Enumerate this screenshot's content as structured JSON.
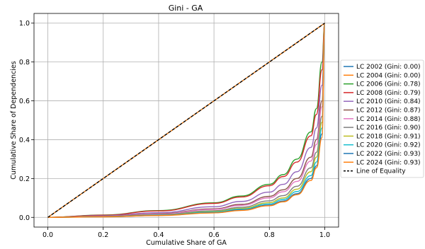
{
  "chart_data": {
    "type": "line",
    "title": "Gini - GA",
    "xlabel": "Cumulative Share of GA",
    "ylabel": "Cumulative Share of Dependencies",
    "xlim": [
      -0.05,
      1.05
    ],
    "ylim": [
      -0.05,
      1.05
    ],
    "xticks": [
      0.0,
      0.2,
      0.4,
      0.6,
      0.8,
      1.0
    ],
    "yticks": [
      0.0,
      0.2,
      0.4,
      0.6,
      0.8,
      1.0
    ],
    "xtick_labels": [
      "0.0",
      "0.2",
      "0.4",
      "0.6",
      "0.8",
      "1.0"
    ],
    "ytick_labels": [
      "0.0",
      "0.2",
      "0.4",
      "0.6",
      "0.8",
      "1.0"
    ],
    "grid": true,
    "legend_position": "outside right",
    "series": [
      {
        "name": "LC 2002 (Gini: 0.00)",
        "color": "#1f77b4",
        "style": "solid",
        "x": [
          0.0,
          1.0
        ],
        "y": [
          0.0,
          1.0
        ]
      },
      {
        "name": "LC 2004 (Gini: 0.00)",
        "color": "#ff7f0e",
        "style": "solid",
        "x": [
          0.0,
          1.0
        ],
        "y": [
          0.0,
          1.0
        ]
      },
      {
        "name": "LC 2006 (Gini: 0.78)",
        "color": "#2ca02c",
        "style": "solid",
        "x": [
          0.0,
          0.2,
          0.4,
          0.6,
          0.7,
          0.8,
          0.85,
          0.9,
          0.95,
          0.97,
          0.99,
          1.0
        ],
        "y": [
          0.0,
          0.012,
          0.035,
          0.075,
          0.11,
          0.17,
          0.22,
          0.3,
          0.44,
          0.56,
          0.8,
          1.0
        ]
      },
      {
        "name": "LC 2008 (Gini: 0.79)",
        "color": "#d62728",
        "style": "solid",
        "x": [
          0.0,
          0.2,
          0.4,
          0.6,
          0.7,
          0.8,
          0.85,
          0.9,
          0.95,
          0.97,
          0.99,
          1.0
        ],
        "y": [
          0.0,
          0.011,
          0.033,
          0.072,
          0.105,
          0.163,
          0.21,
          0.285,
          0.42,
          0.53,
          0.76,
          1.0
        ]
      },
      {
        "name": "LC 2010 (Gini: 0.84)",
        "color": "#9467bd",
        "style": "solid",
        "x": [
          0.0,
          0.2,
          0.4,
          0.6,
          0.7,
          0.8,
          0.85,
          0.9,
          0.95,
          0.97,
          0.99,
          1.0
        ],
        "y": [
          0.0,
          0.008,
          0.024,
          0.055,
          0.082,
          0.13,
          0.17,
          0.235,
          0.36,
          0.46,
          0.68,
          1.0
        ]
      },
      {
        "name": "LC 2012 (Gini: 0.87)",
        "color": "#8c564b",
        "style": "solid",
        "x": [
          0.0,
          0.2,
          0.4,
          0.6,
          0.7,
          0.8,
          0.85,
          0.9,
          0.95,
          0.97,
          0.99,
          1.0
        ],
        "y": [
          0.0,
          0.006,
          0.019,
          0.044,
          0.067,
          0.108,
          0.142,
          0.2,
          0.31,
          0.4,
          0.6,
          1.0
        ]
      },
      {
        "name": "LC 2014 (Gini: 0.88)",
        "color": "#e377c2",
        "style": "solid",
        "x": [
          0.0,
          0.2,
          0.4,
          0.6,
          0.7,
          0.8,
          0.85,
          0.9,
          0.95,
          0.97,
          0.99,
          1.0
        ],
        "y": [
          0.0,
          0.0055,
          0.017,
          0.041,
          0.062,
          0.1,
          0.132,
          0.185,
          0.29,
          0.375,
          0.57,
          1.0
        ]
      },
      {
        "name": "LC 2016 (Gini: 0.90)",
        "color": "#7f7f7f",
        "style": "solid",
        "x": [
          0.0,
          0.2,
          0.4,
          0.6,
          0.7,
          0.8,
          0.85,
          0.9,
          0.95,
          0.97,
          0.99,
          1.0
        ],
        "y": [
          0.0,
          0.0045,
          0.014,
          0.034,
          0.052,
          0.085,
          0.112,
          0.16,
          0.255,
          0.335,
          0.52,
          1.0
        ]
      },
      {
        "name": "LC 2018 (Gini: 0.91)",
        "color": "#bcbd22",
        "style": "solid",
        "x": [
          0.0,
          0.2,
          0.4,
          0.6,
          0.7,
          0.8,
          0.85,
          0.9,
          0.95,
          0.97,
          0.99,
          1.0
        ],
        "y": [
          0.0,
          0.004,
          0.012,
          0.03,
          0.046,
          0.076,
          0.1,
          0.145,
          0.235,
          0.31,
          0.49,
          1.0
        ]
      },
      {
        "name": "LC 2020 (Gini: 0.92)",
        "color": "#17becf",
        "style": "solid",
        "x": [
          0.0,
          0.2,
          0.4,
          0.6,
          0.7,
          0.8,
          0.85,
          0.9,
          0.95,
          0.97,
          0.99,
          1.0
        ],
        "y": [
          0.0,
          0.0035,
          0.011,
          0.027,
          0.042,
          0.069,
          0.092,
          0.133,
          0.215,
          0.285,
          0.46,
          1.0
        ]
      },
      {
        "name": "LC 2022 (Gini: 0.93)",
        "color": "#1f77b4",
        "style": "solid",
        "x": [
          0.0,
          0.2,
          0.4,
          0.6,
          0.7,
          0.8,
          0.85,
          0.9,
          0.95,
          0.97,
          0.99,
          1.0
        ],
        "y": [
          0.0,
          0.003,
          0.01,
          0.024,
          0.038,
          0.063,
          0.084,
          0.122,
          0.2,
          0.265,
          0.43,
          1.0
        ]
      },
      {
        "name": "LC 2024 (Gini: 0.93)",
        "color": "#ff7f0e",
        "style": "solid",
        "x": [
          0.0,
          0.2,
          0.4,
          0.6,
          0.7,
          0.8,
          0.85,
          0.9,
          0.95,
          0.97,
          0.99,
          1.0
        ],
        "y": [
          0.0,
          0.0028,
          0.0095,
          0.023,
          0.036,
          0.06,
          0.08,
          0.117,
          0.19,
          0.255,
          0.41,
          1.0
        ]
      },
      {
        "name": "Line of Equality",
        "color": "#000000",
        "style": "dashed",
        "x": [
          0.0,
          1.0
        ],
        "y": [
          0.0,
          1.0
        ]
      }
    ]
  }
}
